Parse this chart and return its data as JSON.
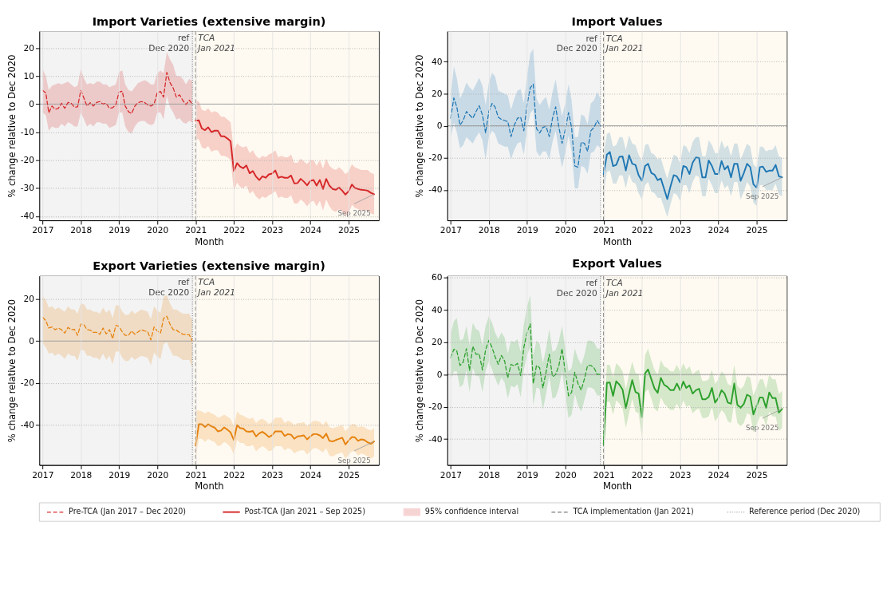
{
  "chart_data": [
    {
      "type": "line",
      "title": "Import Varieties (extensive margin)",
      "xlabel": "Month",
      "ylabel": "% change relative to Dec 2020",
      "xlim": [
        "2016-12-01",
        "2025-10-15"
      ],
      "xticks": [
        "2017",
        "2018",
        "2019",
        "2020",
        "2021",
        "2022",
        "2023",
        "2024",
        "2025"
      ],
      "ylim": [
        -41.5,
        26
      ],
      "yticks": [
        -40,
        -30,
        -20,
        -10,
        0,
        10,
        20
      ],
      "grid": true,
      "legend": "bottom",
      "series": [
        {
          "name": "Pre-TCA (Jan 2017 – Dec 2020)",
          "color": "#d62728",
          "line_style": "dashed",
          "x": [
            "2017-01",
            "2017-02",
            "2017-03",
            "2017-04",
            "2017-05",
            "2017-06",
            "2017-07",
            "2017-08",
            "2017-09",
            "2017-10",
            "2017-11",
            "2017-12",
            "2018-01",
            "2018-02",
            "2018-03",
            "2018-04",
            "2018-05",
            "2018-06",
            "2018-07",
            "2018-08",
            "2018-09",
            "2018-10",
            "2018-11",
            "2018-12",
            "2019-01",
            "2019-02",
            "2019-03",
            "2019-04",
            "2019-05",
            "2019-06",
            "2019-07",
            "2019-08",
            "2019-09",
            "2019-10",
            "2019-11",
            "2019-12",
            "2020-01",
            "2020-02",
            "2020-03",
            "2020-04",
            "2020-05",
            "2020-06",
            "2020-07",
            "2020-08",
            "2020-09",
            "2020-10",
            "2020-11",
            "2020-12"
          ],
          "values": [
            4.9,
            4,
            -3.1,
            -0.7,
            -1.9,
            -1.5,
            0.3,
            -1.5,
            0.6,
            0.3,
            -1.1,
            -1,
            4.9,
            2,
            -0.7,
            0.5,
            -0.7,
            0.6,
            0.9,
            0,
            0.3,
            -1.5,
            -1.3,
            -0.3,
            4.3,
            4.6,
            -0.7,
            -2.7,
            -3.4,
            -0.7,
            0.5,
            0.9,
            0.6,
            -0.3,
            -0.7,
            0,
            4.1,
            4.5,
            2.5,
            11.3,
            7.7,
            5.7,
            2.5,
            3.3,
            1.3,
            -0.2,
            1.4,
            0
          ],
          "upper": [
            12.5,
            10,
            5,
            6.5,
            7,
            7.5,
            7,
            7.5,
            8,
            7,
            6,
            6.5,
            12.5,
            9,
            7,
            7.5,
            7,
            8,
            8,
            7,
            7,
            6,
            6.5,
            7,
            11.5,
            12,
            7,
            5,
            4.5,
            6,
            7.5,
            8,
            8.5,
            8,
            7,
            7,
            11,
            12,
            11,
            18.5,
            16,
            14,
            10,
            10,
            9,
            7,
            9,
            8
          ],
          "lower": [
            -3,
            -4,
            -9.5,
            -8,
            -8.5,
            -8.5,
            -7,
            -8,
            -6.5,
            -7,
            -8,
            -8,
            -3,
            -5.5,
            -8,
            -7,
            -8,
            -6.5,
            -6.5,
            -7,
            -7,
            -8.5,
            -8,
            -7.5,
            -3,
            -3,
            -8,
            -10,
            -10.5,
            -8,
            -6.5,
            -6,
            -6,
            -7,
            -7.5,
            -7,
            -3,
            -3,
            -5.5,
            3,
            -1,
            -3,
            -5.5,
            -5,
            -6.5,
            -7,
            -6,
            -6.5
          ]
        },
        {
          "name": "Post-TCA (Jan 2021 – Sep 2025)",
          "color": "#d62728",
          "line_style": "solid",
          "x": [
            "2021-01",
            "2021-02",
            "2021-03",
            "2021-04",
            "2021-05",
            "2021-06",
            "2021-07",
            "2021-08",
            "2021-09",
            "2021-10",
            "2021-11",
            "2021-12",
            "2022-01",
            "2022-02",
            "2022-03",
            "2022-04",
            "2022-05",
            "2022-06",
            "2022-07",
            "2022-08",
            "2022-09",
            "2022-10",
            "2022-11",
            "2022-12",
            "2023-01",
            "2023-02",
            "2023-03",
            "2023-04",
            "2023-05",
            "2023-06",
            "2023-07",
            "2023-08",
            "2023-09",
            "2023-10",
            "2023-11",
            "2023-12",
            "2024-01",
            "2024-02",
            "2024-03",
            "2024-04",
            "2024-05",
            "2024-06",
            "2024-07",
            "2024-08",
            "2024-09",
            "2024-10",
            "2024-11",
            "2024-12",
            "2025-01",
            "2025-02",
            "2025-03",
            "2025-04",
            "2025-05",
            "2025-06",
            "2025-07",
            "2025-08",
            "2025-09"
          ],
          "values": [
            -5.9,
            -5.8,
            -8.7,
            -9.3,
            -8.3,
            -10,
            -9.5,
            -9.5,
            -11.5,
            -11.5,
            -12.3,
            -13.3,
            -23.9,
            -21.1,
            -22.3,
            -22.9,
            -21.9,
            -24.7,
            -23.9,
            -25.9,
            -27.1,
            -25.8,
            -26.3,
            -25.1,
            -24.8,
            -23.7,
            -26.3,
            -25.9,
            -26.3,
            -26.3,
            -25.5,
            -28.3,
            -28.2,
            -26.7,
            -27.7,
            -29,
            -27.4,
            -27.1,
            -29.1,
            -27.1,
            -30.3,
            -26.7,
            -29.1,
            -30.3,
            -30.6,
            -29.8,
            -30.9,
            -32.3,
            -31.1,
            -28.7,
            -29.9,
            -30.3,
            -30.6,
            -30.7,
            -30.9,
            -31.7,
            -32.2
          ],
          "upper": [
            1.3,
            1,
            -2,
            -2.5,
            -1.5,
            -3,
            -2.5,
            -3,
            -4.5,
            -4.5,
            -5.5,
            -6.5,
            -16.5,
            -14,
            -15,
            -15.5,
            -15,
            -17.5,
            -16.5,
            -18.5,
            -19.5,
            -18.5,
            -19,
            -18,
            -17.5,
            -16.5,
            -19,
            -18.5,
            -19,
            -19,
            -18,
            -21,
            -21,
            -19.5,
            -20.5,
            -21.5,
            -20,
            -20,
            -22,
            -20,
            -23,
            -19.5,
            -22,
            -23,
            -23.5,
            -22.5,
            -23.5,
            -25,
            -24,
            -21.5,
            -22.5,
            -23,
            -23.5,
            -23.5,
            -23.5,
            -24.5,
            -25
          ],
          "lower": [
            -12.7,
            -12.5,
            -15.5,
            -16,
            -15,
            -17,
            -16.5,
            -16.5,
            -18.5,
            -18.5,
            -19,
            -20,
            -31,
            -28,
            -29.5,
            -30,
            -29,
            -32,
            -31,
            -33,
            -34,
            -33,
            -33.5,
            -32.5,
            -32,
            -31,
            -33.5,
            -33,
            -33.5,
            -33.5,
            -32.5,
            -35.5,
            -35.5,
            -34,
            -35,
            -36.5,
            -35,
            -34.5,
            -36.5,
            -34.5,
            -38,
            -34,
            -36.5,
            -38,
            -38.5,
            -37.5,
            -38.5,
            -40,
            -39,
            -36,
            -37,
            -37.5,
            -38,
            -38,
            -38,
            -39,
            -39.5
          ]
        }
      ],
      "bands": [
        {
          "axis": "x",
          "from": "2016-12-01",
          "to": "2020-12-15",
          "color": "#f3f3f3"
        },
        {
          "axis": "x",
          "from": "2020-12-15",
          "to": "2025-10-15",
          "color": "#fffaf1"
        }
      ],
      "ref_lines": [
        {
          "axis": "x",
          "value": "2021-01",
          "line_style": "dashed",
          "color": "#777777",
          "label": "TCA implementation (Jan 2021)"
        },
        {
          "axis": "x",
          "value": "2020-12",
          "line_style": "dotted",
          "color": "#777777",
          "label": "Reference period (Dec 2020)"
        },
        {
          "axis": "y",
          "value": 0,
          "line_style": "solid",
          "color": "#999999"
        }
      ],
      "annotations": [
        "95% confidence interval",
        {
          "text": "ref\nDec 2020",
          "x": "2020-12",
          "y": 25
        },
        {
          "text": "TCA\nJan 2021",
          "x": "2021-01",
          "y": 25
        },
        {
          "text": "Sep 2025",
          "x": "2025-09",
          "y": -32.2
        }
      ]
    },
    {
      "type": "line",
      "title": "Import Values",
      "xlabel": "Month",
      "ylabel": "% change relative to Dec 2020",
      "xlim": [
        "2016-12-01",
        "2025-10-15"
      ],
      "xticks": [
        "2017",
        "2018",
        "2019",
        "2020",
        "2021",
        "2022",
        "2023",
        "2024",
        "2025"
      ],
      "ylim": [
        -59,
        59
      ],
      "yticks": [
        -40,
        -20,
        0,
        20,
        40
      ],
      "grid": true,
      "series": [
        {
          "color": "#1f77b4",
          "line_style": "dashed",
          "x": [
            "2017-01",
            "2017-02",
            "2017-03",
            "2017-04",
            "2017-05",
            "2017-06",
            "2017-07",
            "2017-08",
            "2017-09",
            "2017-10",
            "2017-11",
            "2017-12",
            "2018-01",
            "2018-02",
            "2018-03",
            "2018-04",
            "2018-05",
            "2018-06",
            "2018-07",
            "2018-08",
            "2018-09",
            "2018-10",
            "2018-11",
            "2018-12",
            "2019-01",
            "2019-02",
            "2019-03",
            "2019-04",
            "2019-05",
            "2019-06",
            "2019-07",
            "2019-08",
            "2019-09",
            "2019-10",
            "2019-11",
            "2019-12",
            "2020-01",
            "2020-02",
            "2020-03",
            "2020-04",
            "2020-05",
            "2020-06",
            "2020-07",
            "2020-08",
            "2020-09",
            "2020-10",
            "2020-11",
            "2020-12"
          ],
          "values": [
            4.7,
            17.4,
            11.8,
            0.4,
            3.3,
            8.9,
            6.8,
            4.7,
            8.9,
            12.5,
            6.8,
            -4.5,
            8.9,
            13.9,
            11.8,
            5.4,
            4,
            3.3,
            2.6,
            -6.7,
            0.4,
            4.7,
            5.4,
            -3.1,
            13.2,
            23.8,
            26,
            -1.7,
            -4.5,
            -1,
            -0.3,
            -6.7,
            4.7,
            11.8,
            -1,
            -10.9,
            -2.4,
            8.2,
            -1,
            -25.1,
            -25.8,
            -10.2,
            -10.9,
            -15.9,
            -3.1,
            -1,
            3.3,
            0
          ],
          "upper": [
            18,
            37,
            30,
            17,
            21,
            27,
            24,
            22,
            26,
            30,
            25,
            13,
            27,
            33,
            31,
            22,
            21,
            20,
            19,
            10,
            17,
            22,
            23,
            14,
            31,
            45,
            48,
            17,
            13,
            16,
            18,
            10,
            21,
            29,
            16,
            6,
            14,
            26,
            16,
            -7,
            -7,
            7,
            6,
            1,
            14,
            16,
            21,
            17
          ],
          "lower": [
            -8,
            2,
            -4,
            -14,
            -12,
            -7,
            -9,
            -11,
            -7,
            -4,
            -9,
            -21,
            -7,
            -3,
            -5,
            -11,
            -12,
            -13,
            -13,
            -21,
            -15,
            -11,
            -10,
            -18,
            -2,
            8,
            10,
            -16,
            -19,
            -16,
            -16,
            -21,
            -10,
            -3,
            -16,
            -26,
            -17,
            -6,
            -16,
            -39,
            -39,
            -25,
            -26,
            -30,
            -17,
            -16,
            -12,
            -14
          ]
        },
        {
          "color": "#1f77b4",
          "line_style": "solid",
          "x": [
            "2021-01",
            "2021-02",
            "2021-03",
            "2021-04",
            "2021-05",
            "2021-06",
            "2021-07",
            "2021-08",
            "2021-09",
            "2021-10",
            "2021-11",
            "2021-12",
            "2022-01",
            "2022-02",
            "2022-03",
            "2022-04",
            "2022-05",
            "2022-06",
            "2022-07",
            "2022-08",
            "2022-09",
            "2022-10",
            "2022-11",
            "2022-12",
            "2023-01",
            "2023-02",
            "2023-03",
            "2023-04",
            "2023-05",
            "2023-06",
            "2023-07",
            "2023-08",
            "2023-09",
            "2023-10",
            "2023-11",
            "2023-12",
            "2024-01",
            "2024-02",
            "2024-03",
            "2024-04",
            "2024-05",
            "2024-06",
            "2024-07",
            "2024-08",
            "2024-09",
            "2024-10",
            "2024-11",
            "2024-12",
            "2025-01",
            "2025-02",
            "2025-03",
            "2025-04",
            "2025-05",
            "2025-06",
            "2025-07",
            "2025-08",
            "2025-09"
          ],
          "values": [
            -30.1,
            -18,
            -16.3,
            -25.1,
            -24.4,
            -19.4,
            -19.1,
            -27.9,
            -18.4,
            -23.7,
            -24.4,
            -30.8,
            -34.3,
            -25.1,
            -23.7,
            -29.4,
            -30.5,
            -33.9,
            -32.9,
            -39.3,
            -45.7,
            -37.9,
            -30.8,
            -31.5,
            -35.3,
            -25.1,
            -25.8,
            -30.1,
            -23,
            -19.7,
            -20.1,
            -32.2,
            -32.2,
            -21.6,
            -25.1,
            -30.1,
            -30.1,
            -22,
            -27.2,
            -25.1,
            -32.2,
            -23.7,
            -23.7,
            -34.3,
            -29.4,
            -23.7,
            -25.8,
            -36.5,
            -38.6,
            -25.8,
            -25.5,
            -28.7,
            -28,
            -28,
            -24.4,
            -31.5,
            -32.2
          ],
          "upper": [
            -18,
            -5,
            -4,
            -13,
            -12,
            -7,
            -7,
            -15,
            -6,
            -11,
            -12,
            -18,
            -22,
            -12,
            -11,
            -17,
            -18,
            -21,
            -20,
            -27,
            -33,
            -25,
            -18,
            -19,
            -23,
            -12,
            -13,
            -17,
            -10,
            -7,
            -7,
            -19,
            -19,
            -9,
            -12,
            -17,
            -17,
            -9,
            -14,
            -12,
            -19,
            -11,
            -11,
            -21,
            -16,
            -11,
            -13,
            -24,
            -26,
            -13,
            -13,
            -16,
            -15,
            -15,
            -12,
            -19,
            -20
          ],
          "lower": [
            -42,
            -29,
            -28,
            -36,
            -36,
            -31,
            -31,
            -39,
            -30,
            -35,
            -36,
            -42,
            -46,
            -37,
            -35,
            -41,
            -42,
            -45,
            -45,
            -51,
            -57,
            -49,
            -42,
            -43,
            -47,
            -37,
            -37,
            -42,
            -35,
            -31,
            -32,
            -44,
            -44,
            -33,
            -37,
            -42,
            -42,
            -34,
            -39,
            -37,
            -44,
            -35,
            -35,
            -46,
            -41,
            -35,
            -38,
            -48,
            -50,
            -37,
            -37,
            -40,
            -40,
            -40,
            -36,
            -43,
            -44
          ]
        }
      ],
      "bands": [
        {
          "axis": "x",
          "from": "2016-12-01",
          "to": "2020-12-15",
          "color": "#f3f3f3"
        },
        {
          "axis": "x",
          "from": "2020-12-15",
          "to": "2025-10-15",
          "color": "#fffaf1"
        }
      ],
      "ref_lines": [
        {
          "axis": "x",
          "value": "2021-01",
          "line_style": "dashed",
          "color": "#666666"
        },
        {
          "axis": "x",
          "value": "2020-12",
          "line_style": "dotted",
          "color": "#999999"
        },
        {
          "axis": "y",
          "value": 0,
          "line_style": "solid",
          "color": "#999999"
        }
      ],
      "annotations": [
        {
          "text": "ref\nDec 2020",
          "x": "2020-12",
          "y": 57
        },
        {
          "text": "TCA\nJan 2021",
          "x": "2021-01",
          "y": 57
        },
        {
          "text": "Sep 2025",
          "x": "2025-09",
          "y": -32.2
        }
      ]
    },
    {
      "type": "line",
      "title": "Export Varieties (extensive margin)",
      "xlabel": "Month",
      "ylabel": "% change relative to Dec 2020",
      "xlim": [
        "2016-12-01",
        "2025-10-15"
      ],
      "xticks": [
        "2017",
        "2018",
        "2019",
        "2020",
        "2021",
        "2022",
        "2023",
        "2024",
        "2025"
      ],
      "ylim": [
        -59,
        31
      ],
      "yticks": [
        -40,
        -20,
        0,
        20
      ],
      "grid": true,
      "series": [
        {
          "color": "#e6820e",
          "line_style": "dashed",
          "x": [
            "2017-01",
            "2017-02",
            "2017-03",
            "2017-04",
            "2017-05",
            "2017-06",
            "2017-07",
            "2017-08",
            "2017-09",
            "2017-10",
            "2017-11",
            "2017-12",
            "2018-01",
            "2018-02",
            "2018-03",
            "2018-04",
            "2018-05",
            "2018-06",
            "2018-07",
            "2018-08",
            "2018-09",
            "2018-10",
            "2018-11",
            "2018-12",
            "2019-01",
            "2019-02",
            "2019-03",
            "2019-04",
            "2019-05",
            "2019-06",
            "2019-07",
            "2019-08",
            "2019-09",
            "2019-10",
            "2019-11",
            "2019-12",
            "2020-01",
            "2020-02",
            "2020-03",
            "2020-04",
            "2020-05",
            "2020-06",
            "2020-07",
            "2020-08",
            "2020-09",
            "2020-10",
            "2020-11",
            "2020-12"
          ],
          "values": [
            11.3,
            9.7,
            6.2,
            6.7,
            5.4,
            6.2,
            5.4,
            3.8,
            6.5,
            5.4,
            5.6,
            2.7,
            8.1,
            7.7,
            5.4,
            5.2,
            4.1,
            4.1,
            3.2,
            6.2,
            3.4,
            5.4,
            1.1,
            7.5,
            7,
            4.3,
            2.7,
            2.7,
            4.8,
            3.2,
            4.3,
            5.4,
            4.8,
            4.5,
            0.5,
            6.7,
            4.8,
            3.8,
            10.8,
            11.8,
            8.1,
            5.4,
            5.2,
            4.1,
            3.2,
            3,
            3,
            0
          ],
          "upper": [
            21.5,
            19.5,
            16,
            16.5,
            15,
            16,
            15,
            14,
            16.5,
            15,
            15,
            13,
            18,
            17.5,
            15,
            15,
            14,
            14,
            13,
            16,
            13.5,
            15,
            11,
            17,
            17,
            14,
            12.5,
            12.5,
            14.5,
            13,
            14,
            15,
            14.5,
            14,
            10.5,
            16.5,
            14.5,
            13.5,
            21,
            22,
            18,
            15,
            15,
            14,
            13,
            13,
            13,
            10
          ],
          "lower": [
            -1,
            -3,
            -6,
            -5.5,
            -7,
            -6,
            -7,
            -8.5,
            -6,
            -7,
            -7,
            -9.5,
            -4,
            -4.5,
            -7,
            -7,
            -8,
            -8,
            -9,
            -6,
            -9,
            -7,
            -11,
            -5,
            -5,
            -8,
            -9.5,
            -9.5,
            -7.5,
            -9,
            -8,
            -7,
            -7.5,
            -8,
            -11.5,
            -5.5,
            -7.5,
            -8.5,
            -1.5,
            -0.5,
            -4,
            -7,
            -7,
            -8,
            -9,
            -9,
            -9,
            -12.5
          ]
        },
        {
          "color": "#e6820e",
          "line_style": "solid",
          "x": [
            "2021-01",
            "2021-02",
            "2021-03",
            "2021-04",
            "2021-05",
            "2021-06",
            "2021-07",
            "2021-08",
            "2021-09",
            "2021-10",
            "2021-11",
            "2021-12",
            "2022-01",
            "2022-02",
            "2022-03",
            "2022-04",
            "2022-05",
            "2022-06",
            "2022-07",
            "2022-08",
            "2022-09",
            "2022-10",
            "2022-11",
            "2022-12",
            "2023-01",
            "2023-02",
            "2023-03",
            "2023-04",
            "2023-05",
            "2023-06",
            "2023-07",
            "2023-08",
            "2023-09",
            "2023-10",
            "2023-11",
            "2023-12",
            "2024-01",
            "2024-02",
            "2024-03",
            "2024-04",
            "2024-05",
            "2024-06",
            "2024-07",
            "2024-08",
            "2024-09",
            "2024-10",
            "2024-11",
            "2024-12",
            "2025-01",
            "2025-02",
            "2025-03",
            "2025-04",
            "2025-05",
            "2025-06",
            "2025-07",
            "2025-08",
            "2025-09"
          ],
          "values": [
            -49.7,
            -39.6,
            -39.6,
            -40.9,
            -39.6,
            -40.6,
            -41.2,
            -43,
            -42.6,
            -41.1,
            -42.2,
            -43.5,
            -47.1,
            -40,
            -41.4,
            -41.7,
            -43,
            -43.2,
            -42.8,
            -45.4,
            -43.9,
            -43.2,
            -44.3,
            -45.7,
            -44.9,
            -43,
            -43,
            -43,
            -45.2,
            -44.3,
            -44.6,
            -46.5,
            -45.4,
            -45.2,
            -44.9,
            -46.8,
            -45.4,
            -44.3,
            -44.3,
            -44.9,
            -46.2,
            -44.1,
            -47.5,
            -47.8,
            -47.1,
            -46.6,
            -46,
            -49.2,
            -47.3,
            -45.7,
            -45.8,
            -47.5,
            -46.8,
            -47.1,
            -48.2,
            -48.9,
            -47.8
          ],
          "upper": [
            -33,
            -33,
            -33.5,
            -34.5,
            -33.5,
            -34.5,
            -35,
            -36.5,
            -36,
            -35,
            -36,
            -37,
            -40.5,
            -33.5,
            -35,
            -35.5,
            -36.5,
            -37,
            -36.5,
            -39,
            -37.5,
            -37,
            -38,
            -39.5,
            -38.5,
            -36.5,
            -36.5,
            -36.5,
            -39,
            -38,
            -38.5,
            -40,
            -39,
            -39,
            -38.5,
            -40.5,
            -39,
            -38,
            -38,
            -38.5,
            -40,
            -38,
            -41,
            -41.5,
            -41,
            -40.5,
            -40,
            -43,
            -41,
            -39.5,
            -39.5,
            -41,
            -40.5,
            -41,
            -42,
            -42.5,
            -41.5
          ],
          "lower": [
            -56,
            -46.5,
            -46.5,
            -48,
            -46.5,
            -47.5,
            -48,
            -50,
            -49.5,
            -48,
            -49,
            -50.5,
            -54,
            -47,
            -48.5,
            -48.5,
            -50,
            -50,
            -49.5,
            -52.5,
            -51,
            -50,
            -51,
            -52.5,
            -52,
            -50,
            -50,
            -50,
            -52,
            -51,
            -51.5,
            -53.5,
            -52.5,
            -52,
            -52,
            -54,
            -52.5,
            -51,
            -51,
            -52,
            -53,
            -51,
            -54.5,
            -55,
            -54,
            -53.5,
            -53,
            -56,
            -54,
            -52.5,
            -52.5,
            -54.5,
            -53.5,
            -54,
            -55,
            -56,
            -55
          ]
        }
      ],
      "bands": [
        {
          "axis": "x",
          "from": "2016-12-01",
          "to": "2020-12-15",
          "color": "#f3f3f3"
        },
        {
          "axis": "x",
          "from": "2020-12-15",
          "to": "2025-10-15",
          "color": "#fffaf1"
        }
      ],
      "ref_lines": [
        {
          "axis": "x",
          "value": "2021-01",
          "line_style": "dashed",
          "color": "#777777"
        },
        {
          "axis": "x",
          "value": "2020-12",
          "line_style": "dotted",
          "color": "#777777"
        },
        {
          "axis": "y",
          "value": 0,
          "line_style": "solid",
          "color": "#999999"
        }
      ],
      "annotations": [
        {
          "text": "ref\nDec 2020",
          "x": "2020-12",
          "y": 30
        },
        {
          "text": "TCA\nJan 2021",
          "x": "2021-01",
          "y": 30
        },
        {
          "text": "Sep 2025",
          "x": "2025-09",
          "y": -47.8
        }
      ]
    },
    {
      "type": "line",
      "title": "Export Values",
      "xlabel": "Month",
      "ylabel": "% change relative to Dec 2020",
      "xlim": [
        "2016-12-01",
        "2025-10-15"
      ],
      "xticks": [
        "2017",
        "2018",
        "2019",
        "2020",
        "2021",
        "2022",
        "2023",
        "2024",
        "2025"
      ],
      "ylim": [
        -56,
        61
      ],
      "yticks": [
        -40,
        -20,
        0,
        20,
        40,
        60
      ],
      "grid": true,
      "series": [
        {
          "color": "#2ca02c",
          "line_style": "dashed",
          "x": [
            "2017-01",
            "2017-02",
            "2017-03",
            "2017-04",
            "2017-05",
            "2017-06",
            "2017-07",
            "2017-08",
            "2017-09",
            "2017-10",
            "2017-11",
            "2017-12",
            "2018-01",
            "2018-02",
            "2018-03",
            "2018-04",
            "2018-05",
            "2018-06",
            "2018-07",
            "2018-08",
            "2018-09",
            "2018-10",
            "2018-11",
            "2018-12",
            "2019-01",
            "2019-02",
            "2019-03",
            "2019-04",
            "2019-05",
            "2019-06",
            "2019-07",
            "2019-08",
            "2019-09",
            "2019-10",
            "2019-11",
            "2019-12",
            "2020-01",
            "2020-02",
            "2020-03",
            "2020-04",
            "2020-05",
            "2020-06",
            "2020-07",
            "2020-08",
            "2020-09",
            "2020-10",
            "2020-11",
            "2020-12"
          ],
          "values": [
            10.4,
            15.6,
            14.6,
            5.6,
            7.6,
            16,
            2.5,
            17.4,
            12.5,
            12.8,
            2.8,
            15.3,
            21.1,
            16.7,
            11.1,
            6.3,
            11.8,
            8.3,
            -2.1,
            6.3,
            5.3,
            6.9,
            -0.7,
            16.7,
            26.1,
            31.3,
            -5.6,
            5.6,
            4.2,
            -8.3,
            1.4,
            12.5,
            -1.4,
            0,
            5.6,
            16,
            1.4,
            -13.2,
            -11.1,
            1.4,
            -5.6,
            -9.7,
            -2.8,
            5.6,
            5.6,
            4.2,
            0,
            0
          ],
          "upper": [
            25,
            33,
            35,
            21,
            22,
            30,
            18,
            32,
            28,
            27,
            18,
            30,
            36,
            32,
            26,
            22,
            26,
            23,
            13,
            21,
            20,
            22,
            14,
            31,
            42,
            49,
            12,
            21,
            19,
            7,
            16,
            28,
            14,
            15,
            21,
            30,
            16,
            2,
            4,
            16,
            10,
            6,
            12,
            21,
            21,
            20,
            16,
            16
          ],
          "lower": [
            -3,
            2,
            2,
            -8,
            -6,
            3,
            -11,
            4,
            -1,
            -1,
            -11,
            2,
            8,
            3,
            -2,
            -7,
            -2,
            -5,
            -15,
            -7,
            -8,
            -6,
            -14,
            3,
            12,
            17,
            -19,
            -8,
            -9,
            -22,
            -12,
            -1,
            -15,
            -14,
            -8,
            2,
            -12,
            -27,
            -25,
            -12,
            -19,
            -23,
            -16,
            -8,
            -8,
            -9,
            -13,
            -13
          ]
        },
        {
          "color": "#2ca02c",
          "line_style": "solid",
          "x": [
            "2021-01",
            "2021-02",
            "2021-03",
            "2021-04",
            "2021-05",
            "2021-06",
            "2021-07",
            "2021-08",
            "2021-09",
            "2021-10",
            "2021-11",
            "2021-12",
            "2022-01",
            "2022-02",
            "2022-03",
            "2022-04",
            "2022-05",
            "2022-06",
            "2022-07",
            "2022-08",
            "2022-09",
            "2022-10",
            "2022-11",
            "2022-12",
            "2023-01",
            "2023-02",
            "2023-03",
            "2023-04",
            "2023-05",
            "2023-06",
            "2023-07",
            "2023-08",
            "2023-09",
            "2023-10",
            "2023-11",
            "2023-12",
            "2024-01",
            "2024-02",
            "2024-03",
            "2024-04",
            "2024-05",
            "2024-06",
            "2024-07",
            "2024-08",
            "2024-09",
            "2024-10",
            "2024-11",
            "2024-12",
            "2025-01",
            "2025-02",
            "2025-03",
            "2025-04",
            "2025-05",
            "2025-06",
            "2025-07",
            "2025-08",
            "2025-09"
          ],
          "values": [
            -43.3,
            -5.1,
            -4.9,
            -13.2,
            -4.2,
            -6.3,
            -9.4,
            -20.8,
            -11.8,
            -3.5,
            -10.8,
            -11.8,
            -26.4,
            0.7,
            3.1,
            -2.8,
            -8.6,
            -11.4,
            -2.1,
            -6.3,
            -7.6,
            -9.7,
            -9.7,
            -5.6,
            -9.7,
            -4.4,
            -8.3,
            -6.7,
            -11.8,
            -9.7,
            -8.8,
            -15.3,
            -15.3,
            -13.9,
            -8.3,
            -17.4,
            -14.6,
            -9.7,
            -11.8,
            -17.4,
            -18.1,
            -5.6,
            -18.8,
            -20.6,
            -18.1,
            -12.5,
            -13.6,
            -24.7,
            -19.4,
            -14.2,
            -14.3,
            -20.6,
            -11.1,
            -14.6,
            -14.6,
            -23.6,
            -21.3
          ],
          "upper": [
            -34,
            6,
            6,
            -2,
            7,
            5,
            2,
            -9,
            0,
            8,
            1,
            0,
            -15,
            12,
            16,
            9,
            3,
            0,
            9,
            5,
            4,
            2,
            2,
            6,
            2,
            7,
            3,
            5,
            0,
            2,
            3,
            -4,
            -4,
            -3,
            3,
            -6,
            -3,
            2,
            0,
            -6,
            -7,
            6,
            -7,
            -9,
            -7,
            -1,
            -2,
            -13,
            -8,
            -3,
            -3,
            -9,
            0,
            -3,
            -3,
            -12,
            -10
          ],
          "lower": [
            -53,
            -17,
            -17,
            -25,
            -16,
            -18,
            -21,
            -33,
            -24,
            -15,
            -23,
            -24,
            -39,
            -11,
            -9,
            -15,
            -21,
            -23,
            -14,
            -18,
            -20,
            -22,
            -22,
            -18,
            -22,
            -16,
            -20,
            -19,
            -24,
            -22,
            -21,
            -27,
            -27,
            -26,
            -20,
            -29,
            -26,
            -22,
            -24,
            -29,
            -30,
            -18,
            -30,
            -32,
            -30,
            -24,
            -25,
            -36,
            -31,
            -26,
            -26,
            -32,
            -23,
            -26,
            -26,
            -35,
            -33
          ]
        }
      ],
      "bands": [
        {
          "axis": "x",
          "from": "2016-12-01",
          "to": "2020-12-15",
          "color": "#f3f3f3"
        },
        {
          "axis": "x",
          "from": "2020-12-15",
          "to": "2025-10-15",
          "color": "#fffaf1"
        }
      ],
      "ref_lines": [
        {
          "axis": "x",
          "value": "2021-01",
          "line_style": "dashed",
          "color": "#777777"
        },
        {
          "axis": "x",
          "value": "2020-12",
          "line_style": "dotted",
          "color": "#777777"
        },
        {
          "axis": "y",
          "value": 0,
          "line_style": "solid",
          "color": "#999999"
        }
      ],
      "annotations": [
        {
          "text": "ref\nDec 2020",
          "x": "2020-12",
          "y": 59
        },
        {
          "text": "TCA\nJan 2021",
          "x": "2021-01",
          "y": 59
        },
        {
          "text": "Sep 2025",
          "x": "2025-09",
          "y": -21.3
        }
      ]
    }
  ]
}
